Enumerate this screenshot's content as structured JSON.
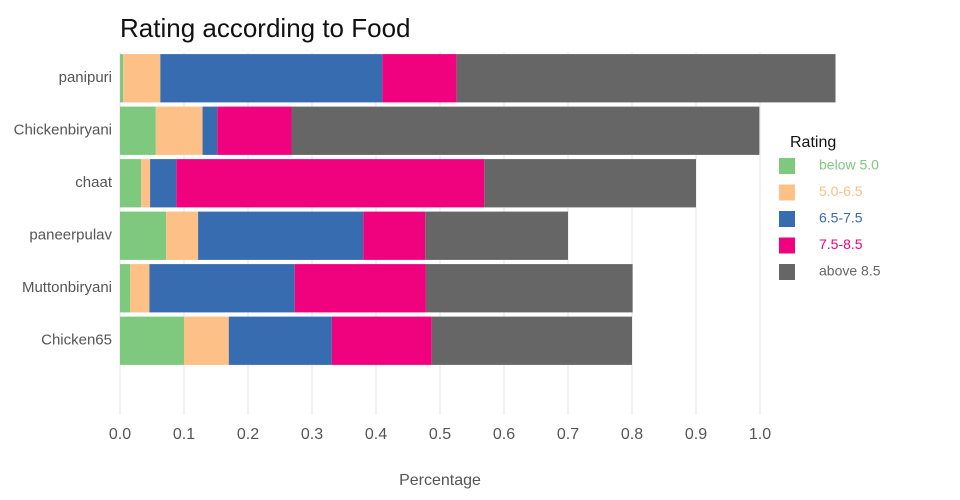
{
  "chart_data": {
    "type": "stacked-barh",
    "title": "Rating according to Food",
    "categories": [
      "panipuri",
      "Chickenbiryani",
      "chaat",
      "paneerpulav",
      "Muttonbiryani",
      "Chicken65"
    ],
    "series": [
      {
        "name": "below 5.0",
        "color": "#7fc97f",
        "values": [
          0.005,
          0.056,
          0.033,
          0.072,
          0.016,
          0.1
        ]
      },
      {
        "name": "5.0-6.5",
        "color": "#fdc086",
        "values": [
          0.058,
          0.073,
          0.014,
          0.05,
          0.03,
          0.07
        ]
      },
      {
        "name": "6.5-7.5",
        "color": "#386cb0",
        "values": [
          0.347,
          0.023,
          0.041,
          0.258,
          0.227,
          0.161
        ]
      },
      {
        "name": "7.5-8.5",
        "color": "#f0027f",
        "values": [
          0.116,
          0.116,
          0.481,
          0.097,
          0.205,
          0.156
        ]
      },
      {
        "name": "above 8.5",
        "color": "#666666",
        "values": [
          0.592,
          0.731,
          0.331,
          0.223,
          0.323,
          0.313
        ]
      }
    ],
    "legend_title": "Rating",
    "xlabel": "Percentage",
    "xlim": [
      0,
      1.12
    ],
    "xticks": [
      {
        "value": 0,
        "label": "0.0"
      },
      0.1,
      0.2,
      0.3,
      0.4,
      0.5,
      0.6,
      0.7,
      0.8,
      0.9,
      {
        "value": 1,
        "label": "1.0"
      }
    ],
    "grid": true,
    "legend": "right"
  }
}
